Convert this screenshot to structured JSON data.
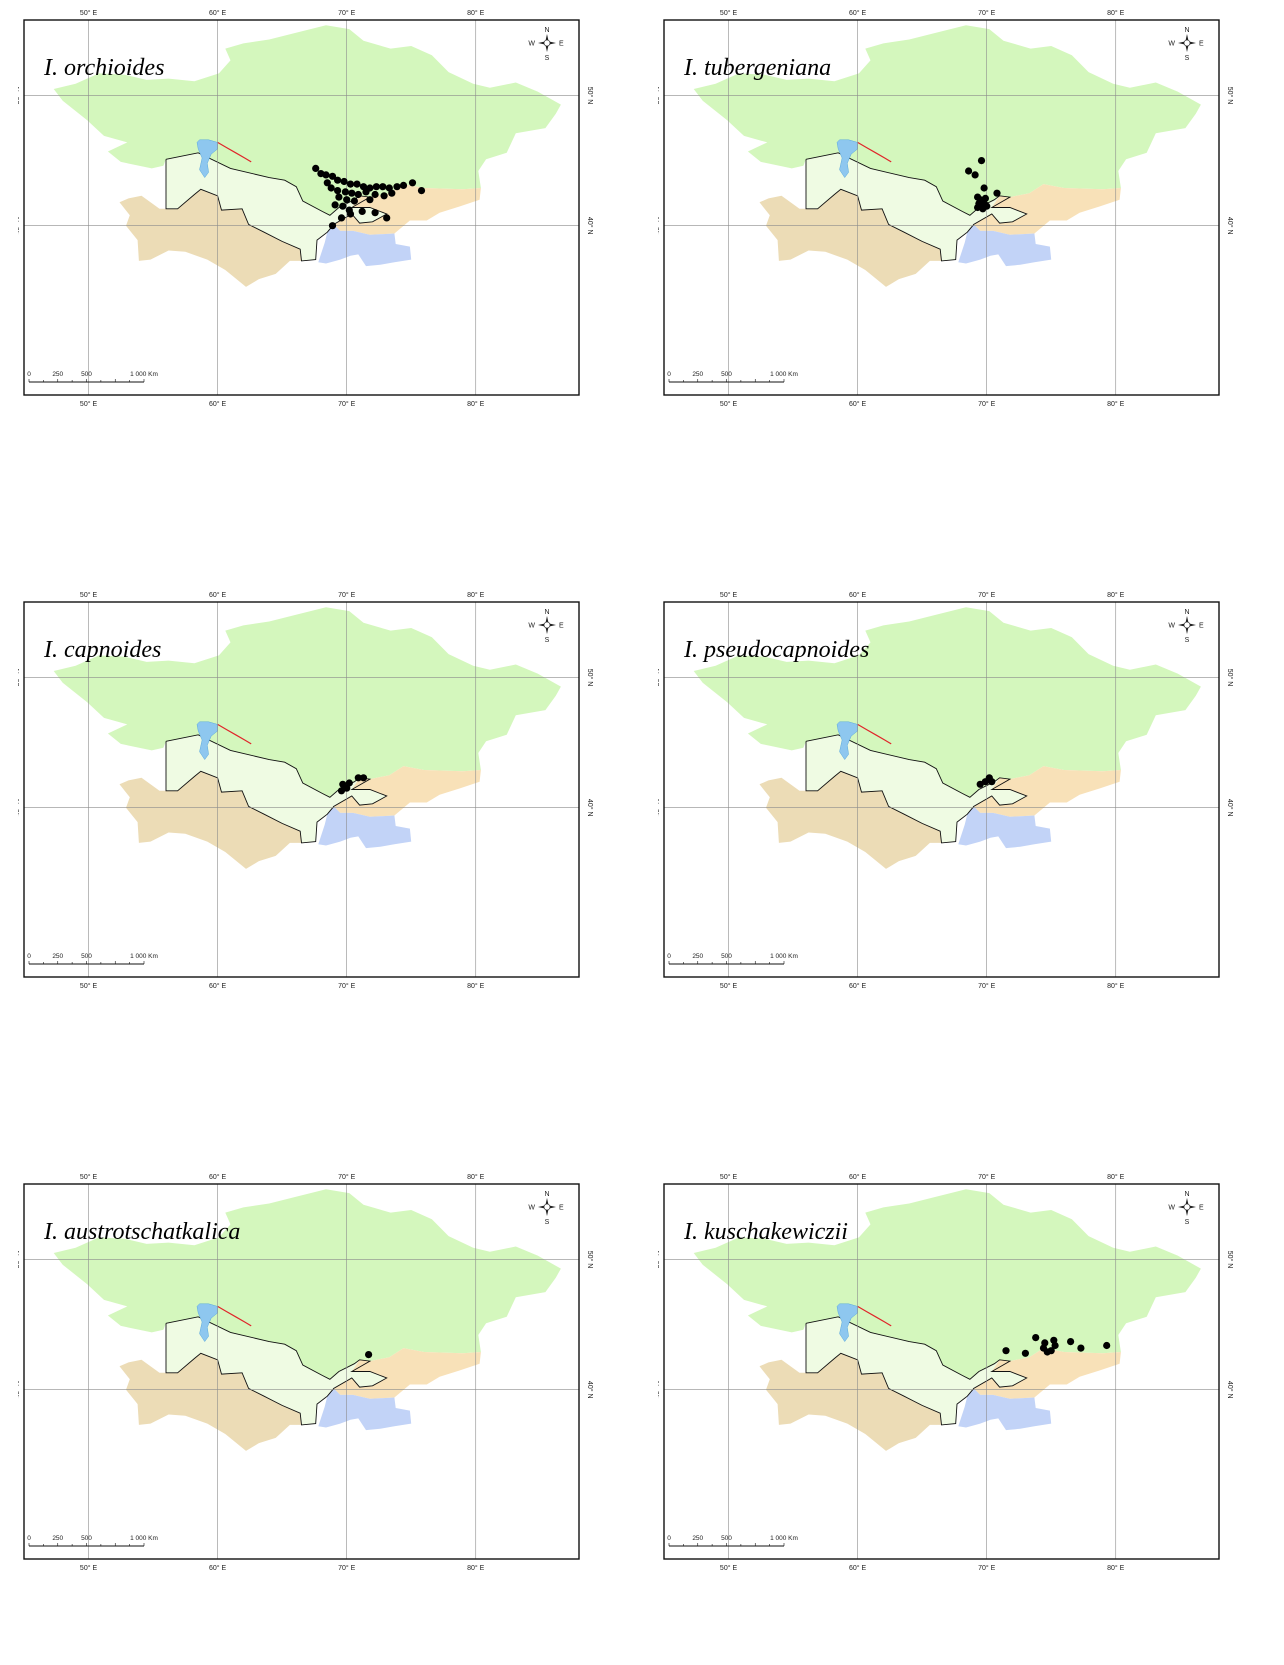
{
  "ticks": {
    "lon": [
      "50° E",
      "60° E",
      "70° E",
      "80° E"
    ],
    "lat": [
      "50° N",
      "40° N"
    ]
  },
  "compass": {
    "n": "N",
    "s": "S",
    "e": "E",
    "w": "W"
  },
  "scale": {
    "l0": "0",
    "l1": "250",
    "l2": "500",
    "l3": "1 000 Km"
  },
  "colors": {
    "kazakhstan": "#d4f7bd",
    "uzbekistan": "#effbe3",
    "turkmenistan": "#ecdcb6",
    "kyrgyzstan": "#f8e1b8",
    "tajikistan": "#c2d3f7",
    "aral_sea": "#8ec7ef",
    "points": "#000000"
  },
  "maps": [
    {
      "title": "I. orchioides",
      "points": [
        [
          67.6,
          44.4
        ],
        [
          68.0,
          44.0
        ],
        [
          68.4,
          43.9
        ],
        [
          68.9,
          43.8
        ],
        [
          69.3,
          43.5
        ],
        [
          69.8,
          43.4
        ],
        [
          70.3,
          43.2
        ],
        [
          70.8,
          43.2
        ],
        [
          71.3,
          43.0
        ],
        [
          71.8,
          42.9
        ],
        [
          72.3,
          43.0
        ],
        [
          72.8,
          43.0
        ],
        [
          73.3,
          42.9
        ],
        [
          73.9,
          43.0
        ],
        [
          74.4,
          43.1
        ],
        [
          75.1,
          43.3
        ],
        [
          75.8,
          42.7
        ],
        [
          68.8,
          42.9
        ],
        [
          69.3,
          42.7
        ],
        [
          69.9,
          42.6
        ],
        [
          70.4,
          42.5
        ],
        [
          70.9,
          42.4
        ],
        [
          71.5,
          42.6
        ],
        [
          72.2,
          42.4
        ],
        [
          72.9,
          42.3
        ],
        [
          73.5,
          42.5
        ],
        [
          69.4,
          42.2
        ],
        [
          70.0,
          42.0
        ],
        [
          70.6,
          41.9
        ],
        [
          69.1,
          41.6
        ],
        [
          69.7,
          41.5
        ],
        [
          70.2,
          41.2
        ],
        [
          71.2,
          41.1
        ],
        [
          72.2,
          41.0
        ],
        [
          73.1,
          40.6
        ],
        [
          69.6,
          40.6
        ],
        [
          70.3,
          40.9
        ],
        [
          68.9,
          40.0
        ],
        [
          71.8,
          42.0
        ],
        [
          68.5,
          43.3
        ]
      ]
    },
    {
      "title": "I. tubergeniana",
      "points": [
        [
          69.6,
          45.0
        ],
        [
          68.6,
          44.2
        ],
        [
          69.1,
          43.9
        ],
        [
          69.8,
          42.9
        ],
        [
          70.8,
          42.5
        ],
        [
          69.3,
          42.2
        ],
        [
          69.9,
          42.1
        ],
        [
          69.6,
          41.8
        ],
        [
          69.9,
          41.6
        ],
        [
          69.4,
          41.7
        ],
        [
          70.0,
          41.5
        ],
        [
          69.3,
          41.4
        ],
        [
          69.7,
          41.3
        ],
        [
          69.5,
          42.0
        ]
      ]
    },
    {
      "title": "I. capnoides",
      "points": [
        [
          70.9,
          42.3
        ],
        [
          71.3,
          42.3
        ],
        [
          70.2,
          41.9
        ],
        [
          69.7,
          41.8
        ],
        [
          70.0,
          41.5
        ],
        [
          69.6,
          41.3
        ]
      ]
    },
    {
      "title": "I. pseudocapnoides",
      "points": [
        [
          70.2,
          42.3
        ],
        [
          69.9,
          42.0
        ],
        [
          70.4,
          42.0
        ],
        [
          69.5,
          41.8
        ]
      ]
    },
    {
      "title": "I. austrotschatkalica",
      "points": [
        [
          71.7,
          42.7
        ]
      ]
    },
    {
      "title": "I. kuschakewiczii",
      "points": [
        [
          71.5,
          43.0
        ],
        [
          73.0,
          42.8
        ],
        [
          73.8,
          44.0
        ],
        [
          74.5,
          43.6
        ],
        [
          75.2,
          43.8
        ],
        [
          76.5,
          43.7
        ],
        [
          74.4,
          43.2
        ],
        [
          75.0,
          43.0
        ],
        [
          74.7,
          42.9
        ],
        [
          75.3,
          43.4
        ],
        [
          77.3,
          43.2
        ],
        [
          79.3,
          43.4
        ]
      ]
    }
  ]
}
